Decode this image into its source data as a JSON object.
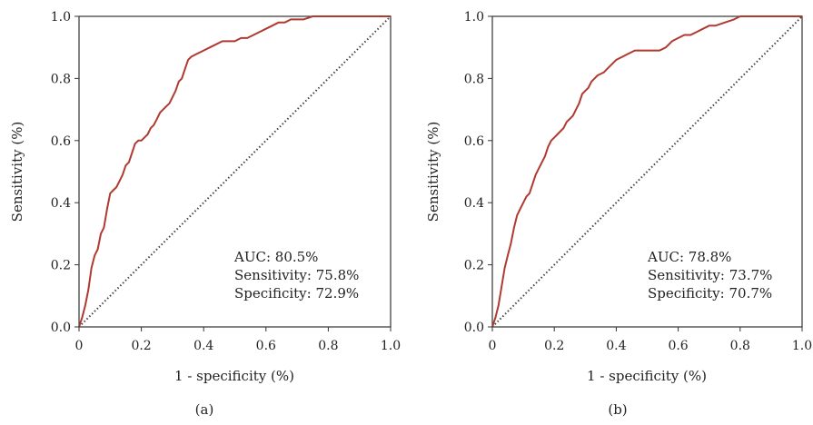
{
  "chart_data": [
    {
      "type": "line",
      "panel_label": "(a)",
      "xlabel": "1 - specificity (%)",
      "ylabel": "Sensitivity (%)",
      "xlim": [
        0,
        1
      ],
      "ylim": [
        0,
        1
      ],
      "x_ticks": [
        "0",
        "0.2",
        "0.4",
        "0.6",
        "0.8",
        "1.0"
      ],
      "y_ticks": [
        "0.0",
        "0.2",
        "0.4",
        "0.6",
        "0.8",
        "1.0"
      ],
      "grid": false,
      "annotations": [
        "AUC: 80.5%",
        "Sensitivity: 75.8%",
        "Specificity: 72.9%"
      ],
      "series": [
        {
          "type": "line",
          "color": "#b03a30",
          "x": [
            0,
            0.01,
            0.02,
            0.03,
            0.04,
            0.05,
            0.06,
            0.07,
            0.08,
            0.09,
            0.1,
            0.11,
            0.12,
            0.13,
            0.14,
            0.15,
            0.16,
            0.17,
            0.18,
            0.19,
            0.2,
            0.21,
            0.22,
            0.23,
            0.24,
            0.25,
            0.26,
            0.27,
            0.28,
            0.29,
            0.3,
            0.31,
            0.32,
            0.33,
            0.34,
            0.35,
            0.36,
            0.38,
            0.4,
            0.42,
            0.44,
            0.46,
            0.48,
            0.5,
            0.52,
            0.54,
            0.56,
            0.58,
            0.6,
            0.62,
            0.64,
            0.66,
            0.68,
            0.7,
            0.72,
            0.75,
            0.8,
            0.85,
            0.9,
            1.0
          ],
          "y": [
            0,
            0.03,
            0.07,
            0.12,
            0.19,
            0.23,
            0.25,
            0.3,
            0.32,
            0.38,
            0.43,
            0.44,
            0.45,
            0.47,
            0.49,
            0.52,
            0.53,
            0.56,
            0.59,
            0.6,
            0.6,
            0.61,
            0.62,
            0.64,
            0.65,
            0.67,
            0.69,
            0.7,
            0.71,
            0.72,
            0.74,
            0.76,
            0.79,
            0.8,
            0.83,
            0.86,
            0.87,
            0.88,
            0.89,
            0.9,
            0.91,
            0.92,
            0.92,
            0.92,
            0.93,
            0.93,
            0.94,
            0.95,
            0.96,
            0.97,
            0.98,
            0.98,
            0.99,
            0.99,
            0.99,
            1.0,
            1.0,
            1.0,
            1.0,
            1.0
          ]
        },
        {
          "type": "reference",
          "color": "#444444",
          "style": "dotted",
          "x": [
            0,
            1
          ],
          "y": [
            0,
            1
          ]
        }
      ]
    },
    {
      "type": "line",
      "panel_label": "(b)",
      "xlabel": "1 - specificity (%)",
      "ylabel": "Sensitivity (%)",
      "xlim": [
        0,
        1
      ],
      "ylim": [
        0,
        1
      ],
      "x_ticks": [
        "0",
        "0.2",
        "0.4",
        "0.6",
        "0.8",
        "1.0"
      ],
      "y_ticks": [
        "0.0",
        "0.2",
        "0.4",
        "0.6",
        "0.8",
        "1.0"
      ],
      "grid": false,
      "annotations": [
        "AUC: 78.8%",
        "Sensitivity: 73.7%",
        "Specificity: 70.7%"
      ],
      "series": [
        {
          "type": "line",
          "color": "#b03a30",
          "x": [
            0,
            0.01,
            0.02,
            0.03,
            0.04,
            0.05,
            0.06,
            0.07,
            0.08,
            0.09,
            0.1,
            0.11,
            0.12,
            0.13,
            0.14,
            0.15,
            0.16,
            0.17,
            0.18,
            0.19,
            0.2,
            0.21,
            0.22,
            0.23,
            0.24,
            0.25,
            0.26,
            0.27,
            0.28,
            0.29,
            0.3,
            0.31,
            0.32,
            0.33,
            0.34,
            0.36,
            0.38,
            0.4,
            0.42,
            0.44,
            0.46,
            0.48,
            0.5,
            0.52,
            0.54,
            0.56,
            0.58,
            0.6,
            0.62,
            0.64,
            0.66,
            0.68,
            0.7,
            0.72,
            0.75,
            0.78,
            0.8,
            0.85,
            0.9,
            1.0
          ],
          "y": [
            0,
            0.03,
            0.07,
            0.13,
            0.19,
            0.23,
            0.27,
            0.32,
            0.36,
            0.38,
            0.4,
            0.42,
            0.43,
            0.46,
            0.49,
            0.51,
            0.53,
            0.55,
            0.58,
            0.6,
            0.61,
            0.62,
            0.63,
            0.64,
            0.66,
            0.67,
            0.68,
            0.7,
            0.72,
            0.75,
            0.76,
            0.77,
            0.79,
            0.8,
            0.81,
            0.82,
            0.84,
            0.86,
            0.87,
            0.88,
            0.89,
            0.89,
            0.89,
            0.89,
            0.89,
            0.9,
            0.92,
            0.93,
            0.94,
            0.94,
            0.95,
            0.96,
            0.97,
            0.97,
            0.98,
            0.99,
            1.0,
            1.0,
            1.0,
            1.0
          ]
        },
        {
          "type": "reference",
          "color": "#444444",
          "style": "dotted",
          "x": [
            0,
            1
          ],
          "y": [
            0,
            1
          ]
        }
      ]
    }
  ]
}
